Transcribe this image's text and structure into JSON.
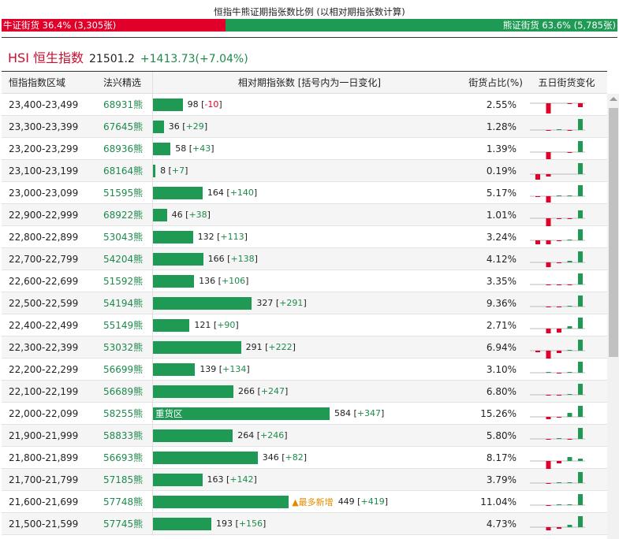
{
  "title": "恒指牛熊证期指张数比例 (以相对期指张数计算)",
  "ratio": {
    "bull_label": "牛证街货 36.4% (3,305张)",
    "bear_label": "熊证街货 63.6% (5,785张)",
    "bull_pct": 36.4,
    "bull_color": "#e0002a",
    "bear_color": "#1f9a55"
  },
  "index": {
    "name": "HSI 恒生指数",
    "value": "21501.2",
    "change": "+1413.73(+7.04%)"
  },
  "headers": [
    "恒指指数区域",
    "法兴精选",
    "相对期指张数 [括号内为一日变化]",
    "街货占比(%)",
    "五日街货变化"
  ],
  "max_contracts": 584,
  "rows": [
    {
      "range": "23,400-23,499",
      "code": "68931熊",
      "n": 98,
      "chg": "-10",
      "pct": "2.55%",
      "spark": [
        0,
        -13,
        0,
        -1,
        -5
      ]
    },
    {
      "range": "23,300-23,399",
      "code": "67645熊",
      "n": 36,
      "chg": "+29",
      "pct": "1.28%",
      "spark": [
        0,
        -1,
        1,
        -1,
        14
      ]
    },
    {
      "range": "23,200-23,299",
      "code": "68936熊",
      "n": 58,
      "chg": "+43",
      "pct": "1.39%",
      "spark": [
        0,
        -9,
        0,
        -1,
        14
      ]
    },
    {
      "range": "23,100-23,199",
      "code": "68164熊",
      "n": 8,
      "chg": "+7",
      "pct": "0.19%",
      "spark": [
        -7,
        -3,
        0,
        0,
        14
      ]
    },
    {
      "range": "23,000-23,099",
      "code": "51595熊",
      "n": 164,
      "chg": "+140",
      "pct": "5.17%",
      "spark": [
        -1,
        -8,
        1,
        1,
        14
      ]
    },
    {
      "range": "22,900-22,999",
      "code": "68922熊",
      "n": 46,
      "chg": "+38",
      "pct": "1.01%",
      "spark": [
        0,
        -13,
        -1,
        -1,
        10
      ]
    },
    {
      "range": "22,800-22,899",
      "code": "53043熊",
      "n": 132,
      "chg": "+113",
      "pct": "3.24%",
      "spark": [
        -5,
        -5,
        -1,
        1,
        14
      ]
    },
    {
      "range": "22,700-22,799",
      "code": "54204熊",
      "n": 166,
      "chg": "+138",
      "pct": "4.12%",
      "spark": [
        0,
        -6,
        -1,
        2,
        14
      ]
    },
    {
      "range": "22,600-22,699",
      "code": "51592熊",
      "n": 136,
      "chg": "+106",
      "pct": "3.35%",
      "spark": [
        0,
        -1,
        -1,
        -1,
        14
      ]
    },
    {
      "range": "22,500-22,599",
      "code": "54194熊",
      "n": 327,
      "chg": "+291",
      "pct": "9.36%",
      "spark": [
        0,
        -1,
        -1,
        1,
        14
      ]
    },
    {
      "range": "22,400-22,499",
      "code": "55149熊",
      "n": 121,
      "chg": "+90",
      "pct": "2.71%",
      "spark": [
        0,
        -6,
        -5,
        3,
        14
      ]
    },
    {
      "range": "22,300-22,399",
      "code": "53032熊",
      "n": 291,
      "chg": "+222",
      "pct": "6.94%",
      "spark": [
        -2,
        -13,
        -3,
        1,
        14
      ]
    },
    {
      "range": "22,200-22,299",
      "code": "56699熊",
      "n": 139,
      "chg": "+134",
      "pct": "3.10%",
      "spark": [
        0,
        1,
        -1,
        1,
        14
      ]
    },
    {
      "range": "22,100-22,199",
      "code": "56689熊",
      "n": 266,
      "chg": "+247",
      "pct": "6.80%",
      "spark": [
        0,
        -1,
        -1,
        1,
        14
      ]
    },
    {
      "range": "22,000-22,099",
      "code": "58255熊",
      "n": 584,
      "chg": "+347",
      "pct": "15.26%",
      "spark": [
        0,
        -3,
        -1,
        5,
        14
      ],
      "bar_label": "重货区"
    },
    {
      "range": "21,900-21,999",
      "code": "58833熊",
      "n": 264,
      "chg": "+246",
      "pct": "5.80%",
      "spark": [
        0,
        -1,
        1,
        -1,
        14
      ]
    },
    {
      "range": "21,800-21,899",
      "code": "56693熊",
      "n": 346,
      "chg": "+82",
      "pct": "8.17%",
      "spark": [
        0,
        -13,
        -3,
        5,
        3
      ]
    },
    {
      "range": "21,700-21,799",
      "code": "57185熊",
      "n": 163,
      "chg": "+142",
      "pct": "3.79%",
      "spark": [
        0,
        -1,
        1,
        1,
        14
      ]
    },
    {
      "range": "21,600-21,699",
      "code": "57748熊",
      "n": 449,
      "chg": "+419",
      "pct": "11.04%",
      "spark": [
        0,
        -1,
        1,
        1,
        14
      ],
      "note": "▲最多新增"
    },
    {
      "range": "21,500-21,599",
      "code": "57745熊",
      "n": 193,
      "chg": "+156",
      "pct": "4.73%",
      "spark": [
        0,
        -4,
        -2,
        3,
        14
      ]
    }
  ]
}
